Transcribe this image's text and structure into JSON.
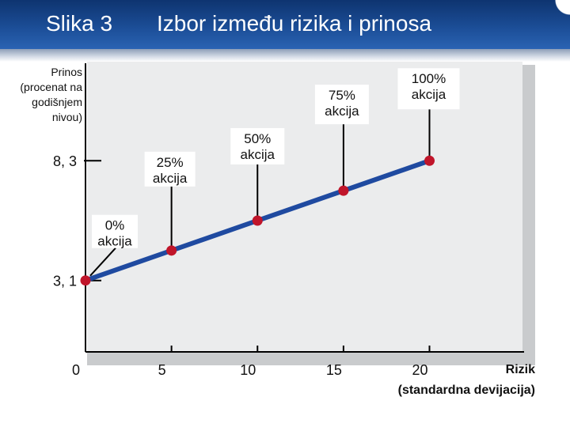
{
  "header": {
    "figure_label": "Slika 3",
    "title": "Izbor između rizika i prinosa"
  },
  "colors": {
    "header_bar": "#1b4d96",
    "line": "#1f4aa0",
    "points": "#c0152a",
    "panel": "#ebeced"
  },
  "chart_data": {
    "type": "line",
    "title": "Izbor između rizika i prinosa",
    "ylabel": "Prinos (procenat na godišnjem nivou)",
    "xlabel": [
      "Rizik",
      "(standardna devijacija)"
    ],
    "x_ticks": [
      0,
      5,
      10,
      15,
      20
    ],
    "x_tick_labels": [
      "0",
      "5",
      "10",
      "15",
      "20"
    ],
    "y_ticks": [
      3.1,
      8.3
    ],
    "y_tick_labels": [
      "3, 1",
      "8, 3"
    ],
    "xlim": [
      0,
      25.5
    ],
    "ylim": [
      0,
      12.6
    ],
    "grid": false,
    "series": [
      {
        "x": [
          0,
          5,
          10,
          15,
          20
        ],
        "y": [
          3.1,
          4.4,
          5.7,
          7.0,
          8.3
        ],
        "point_labels": [
          [
            "0%",
            "akcija"
          ],
          [
            "25%",
            "akcija"
          ],
          [
            "50%",
            "akcija"
          ],
          [
            "75%",
            "akcija"
          ],
          [
            "100%",
            "akcija"
          ]
        ]
      }
    ]
  }
}
